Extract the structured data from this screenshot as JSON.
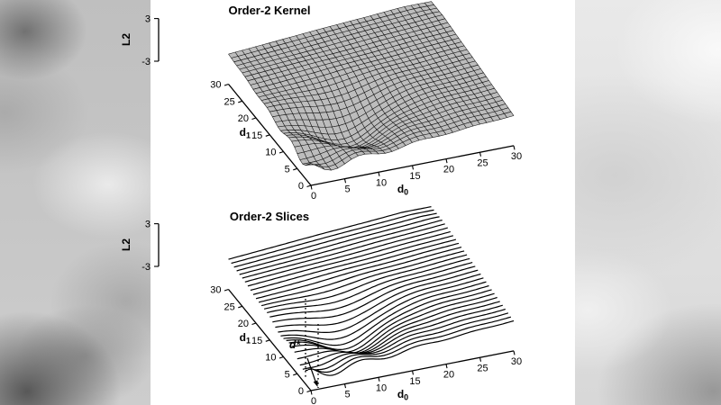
{
  "frame": {
    "panel_color": "#ffffff",
    "side_color": "#cdcdcd",
    "ink_color": "#000000"
  },
  "chart_data": [
    {
      "type": "surface",
      "title": "Order-2 Kernel",
      "xlabel": {
        "base": "d",
        "sub": "0"
      },
      "ylabel": {
        "base": "d",
        "sub": "1"
      },
      "zlabel": "L2",
      "xlim": [
        0,
        30
      ],
      "ylim": [
        0,
        30
      ],
      "zlim": [
        -3,
        3
      ],
      "xticks": [
        0,
        5,
        10,
        15,
        20,
        25,
        30
      ],
      "yticks": [
        0,
        5,
        10,
        15,
        20,
        25,
        30
      ],
      "zticks": [
        3,
        -3
      ],
      "grid_step": 1,
      "legend": "none",
      "grid": "off",
      "surface_model": {
        "ramp_gain": 2.1,
        "ramp_offset": -0.85,
        "pit_depth": -3.3,
        "pit_center": 9.5,
        "pit_sigma2": 34,
        "ripple_amp": 1.1,
        "ripple_freq": 0.75,
        "ripple_phase": 0.5,
        "ripple_decay": 8.5,
        "clamp": 3.05
      },
      "style": {
        "mesh_fill": "#bdbdbd",
        "mesh_stroke": "#141414"
      }
    },
    {
      "type": "waterfall",
      "title": "Order-2 Slices",
      "xlabel": {
        "base": "d",
        "sub": "0"
      },
      "ylabel": {
        "base": "d",
        "sub": "1"
      },
      "zlabel": "L2",
      "xlim": [
        0,
        30
      ],
      "ylim": [
        0,
        30
      ],
      "zlim": [
        -3,
        3
      ],
      "xticks": [
        0,
        5,
        10,
        15,
        20,
        25,
        30
      ],
      "yticks": [
        0,
        5,
        10,
        15,
        20,
        25,
        30
      ],
      "zticks": [
        3,
        -3
      ],
      "slice_step": 1,
      "legend": "none",
      "grid": "off",
      "surface_model": {
        "ramp_gain": 2.1,
        "ramp_offset": -0.85,
        "pit_depth": -3.3,
        "pit_center": 9.5,
        "pit_sigma2": 34,
        "ripple_amp": 1.1,
        "ripple_freq": 0.75,
        "ripple_phase": 0.5,
        "ripple_decay": 8.5,
        "clamp": 3.05
      },
      "annotation": {
        "label": "d*"
      },
      "style": {
        "line_color": "#000000",
        "fill_color": "#ffffff"
      }
    }
  ]
}
